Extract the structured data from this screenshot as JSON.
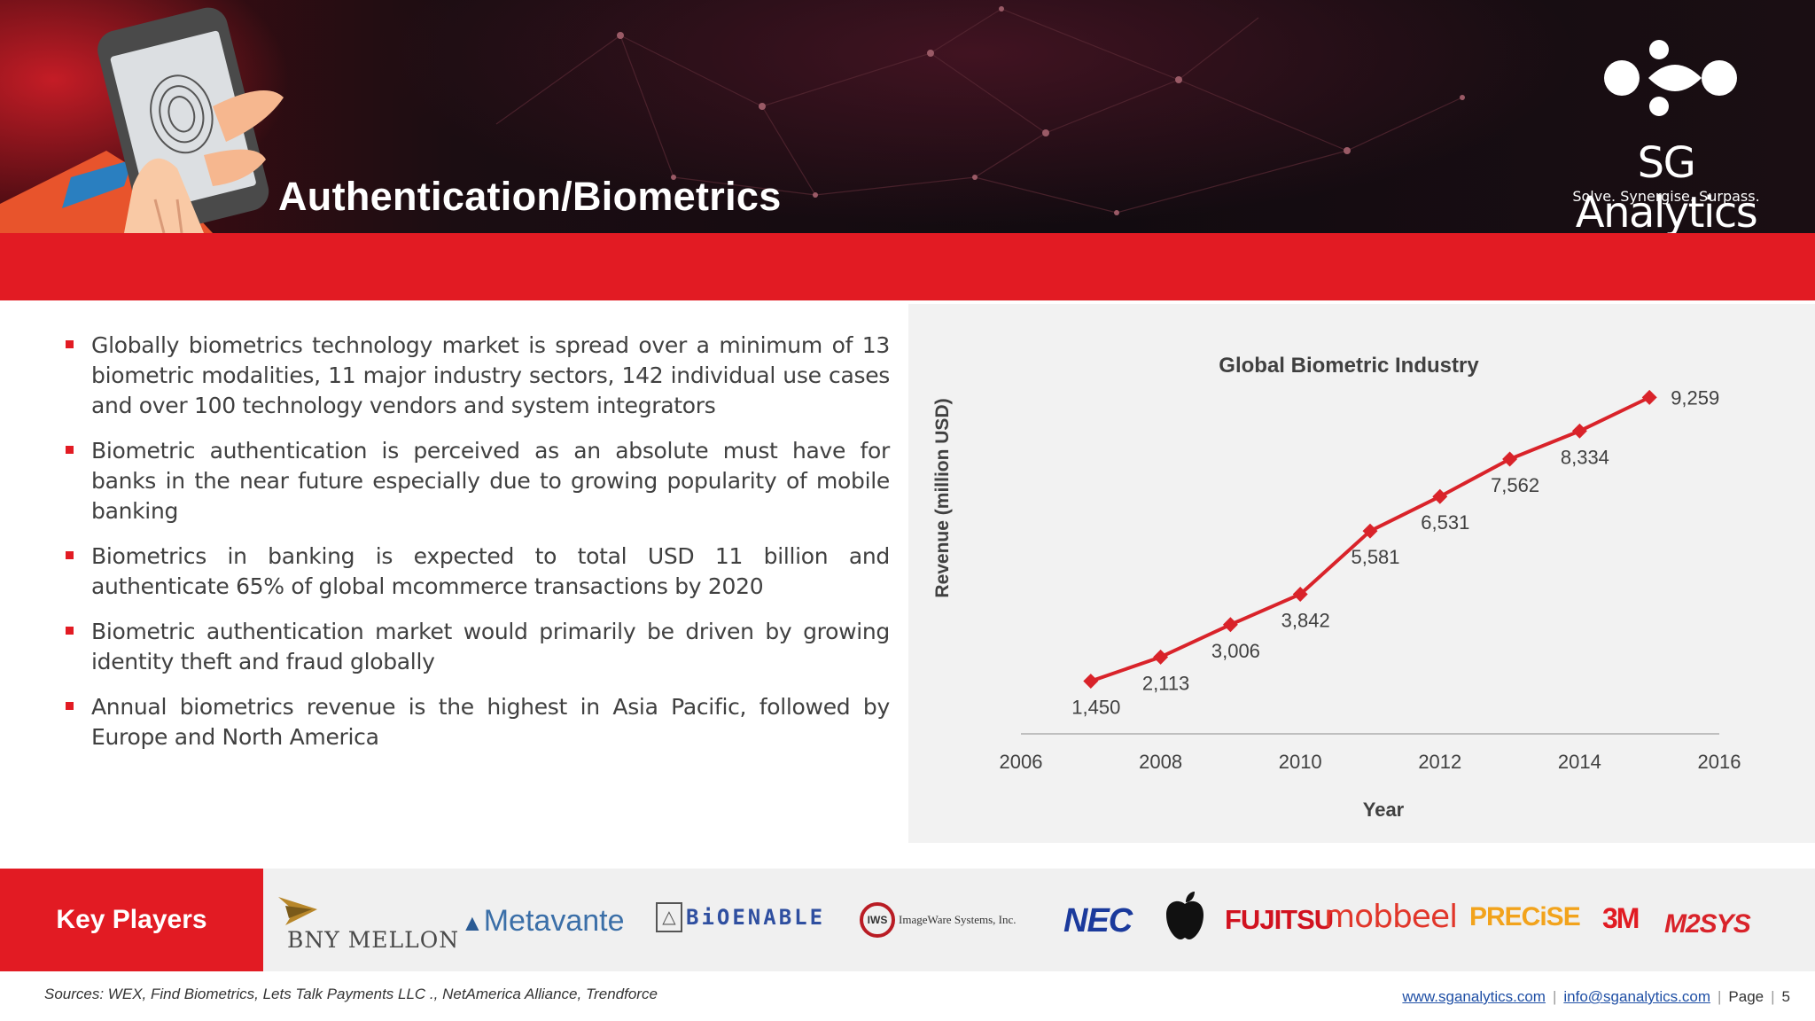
{
  "header": {
    "title": "Authentication/Biometrics",
    "brand_name": "SG Analytics",
    "brand_tagline": "Solve. Synergise. Surpass.",
    "accent_color": "#e21b23"
  },
  "bullets": [
    "Globally biometrics technology market is spread over a minimum of 13 biometric modalities, 11 major industry sectors, 142 individual use cases and over 100 technology vendors and system integrators",
    "Biometric authentication is perceived as an absolute must have for banks in the near future especially due to growing popularity of mobile banking",
    "Biometrics in banking is expected to total USD 11 billion and authenticate 65% of global mcommerce transactions by 2020",
    "Biometric authentication market would primarily be driven by growing identity theft and fraud globally",
    "Annual biometrics revenue is the highest in Asia Pacific, followed by Europe and North America"
  ],
  "chart_data": {
    "type": "line",
    "title": "Global Biometric Industry",
    "xlabel": "Year",
    "ylabel": "Revenue (million USD)",
    "x": [
      2007,
      2008,
      2009,
      2010,
      2011,
      2012,
      2013,
      2014,
      2015
    ],
    "series": [
      {
        "values": [
          1450,
          2113,
          3006,
          3842,
          5581,
          6531,
          7562,
          8334,
          9259
        ],
        "labels": [
          "1,450",
          "2,113",
          "3,006",
          "3,842",
          "5,581",
          "6,531",
          "7,562",
          "8,334",
          "9,259"
        ],
        "color": "#d9232a"
      }
    ],
    "xlim": [
      2006,
      2016
    ],
    "xticks": [
      "2006",
      "2008",
      "2010",
      "2012",
      "2014",
      "2016"
    ],
    "grid": false,
    "legend": "none"
  },
  "key_players": {
    "label": "Key Players",
    "logos": [
      {
        "name": "BNY MELLON",
        "icon": "bny-mellon-logo"
      },
      {
        "name": "Metavante",
        "icon": "metavante-logo"
      },
      {
        "name": "BiOENABLE",
        "icon": "bioenable-logo"
      },
      {
        "name": "ImageWare Systems, Inc.",
        "icon": "imageware-logo"
      },
      {
        "name": "NEC",
        "icon": "nec-logo"
      },
      {
        "name": "Apple",
        "icon": "apple-logo"
      },
      {
        "name": "FUJITSU",
        "icon": "fujitsu-logo"
      },
      {
        "name": "mobbeel",
        "icon": "mobbeel-logo"
      },
      {
        "name": "PRECiSE",
        "icon": "precise-logo"
      },
      {
        "name": "3M",
        "icon": "3m-logo"
      },
      {
        "name": "M2SYS",
        "icon": "m2sys-logo"
      }
    ]
  },
  "footer": {
    "sources": "Sources: WEX, Find Biometrics, Lets Talk Payments LLC ., NetAmerica Alliance, Trendforce",
    "website": "www.sganalytics.com",
    "email": "info@sganalytics.com",
    "page_label": "Page",
    "page_number": "5"
  }
}
